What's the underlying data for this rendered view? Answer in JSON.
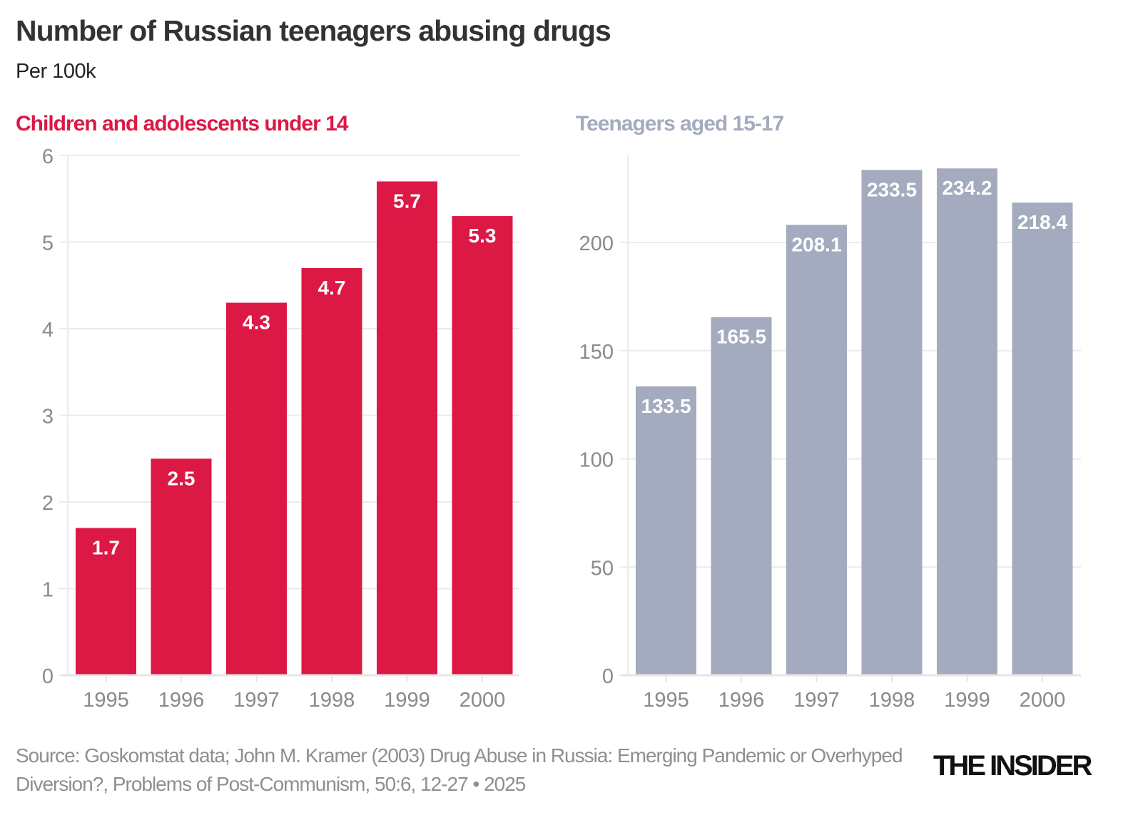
{
  "title": "Number of Russian teenagers abusing drugs",
  "subtitle": "Per 100k",
  "source": "Source: Goskomstat data; John M. Kramer (2003) Drug Abuse in Russia: Emerging Pandemic or Overhyped Diversion?, Problems of Post-Communism, 50:6, 12-27 • 2025",
  "logo": "THE INSIDER",
  "chart_data": [
    {
      "type": "bar",
      "title": "Children and adolescents under 14",
      "color": "#dc1845",
      "categories": [
        "1995",
        "1996",
        "1997",
        "1998",
        "1999",
        "2000"
      ],
      "values": [
        1.7,
        2.5,
        4.3,
        4.7,
        5.7,
        5.3
      ],
      "data_labels": [
        "1.7",
        "2.5",
        "4.3",
        "4.7",
        "5.7",
        "5.3"
      ],
      "ylim": [
        0,
        6
      ],
      "yticks": [
        0,
        1,
        2,
        3,
        4,
        5,
        6
      ],
      "grid": true
    },
    {
      "type": "bar",
      "title": "Teenagers aged 15-17",
      "color": "#a4abbe",
      "title_color": "#a4abbe",
      "categories": [
        "1995",
        "1996",
        "1997",
        "1998",
        "1999",
        "2000"
      ],
      "values": [
        133.5,
        165.5,
        208.1,
        233.5,
        234.2,
        218.4
      ],
      "data_labels": [
        "133.5",
        "165.5",
        "208.1",
        "233.5",
        "234.2",
        "218.4"
      ],
      "ylim": [
        0,
        240
      ],
      "yticks": [
        0,
        50,
        100,
        150,
        200
      ],
      "grid": true
    }
  ]
}
